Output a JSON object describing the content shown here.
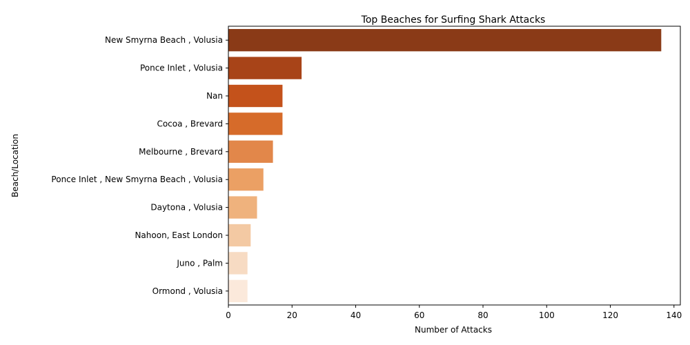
{
  "chart_data": {
    "type": "bar",
    "orientation": "horizontal",
    "title": "Top Beaches for Surfing Shark Attacks",
    "xlabel": "Number of Attacks",
    "ylabel": "Beach/Location",
    "xlim": [
      0,
      142
    ],
    "xticks": [
      0,
      20,
      40,
      60,
      80,
      100,
      120,
      140
    ],
    "grid": false,
    "categories": [
      "New Smyrna Beach , Volusia",
      "Ponce Inlet , Volusia",
      "Nan",
      "Cocoa , Brevard",
      "Melbourne , Brevard",
      "Ponce Inlet , New Smyrna Beach , Volusia",
      "Daytona , Volusia",
      "Nahoon, East London",
      "Juno , Palm",
      "Ormond , Volusia"
    ],
    "values": [
      136,
      23,
      17,
      17,
      14,
      11,
      9,
      7,
      6,
      6
    ],
    "colors": [
      "#8a3a17",
      "#a84418",
      "#c4521b",
      "#d66b2a",
      "#e2874a",
      "#eba064",
      "#efb27d",
      "#f3c9a3",
      "#f7dbc3",
      "#fbe9db"
    ]
  }
}
